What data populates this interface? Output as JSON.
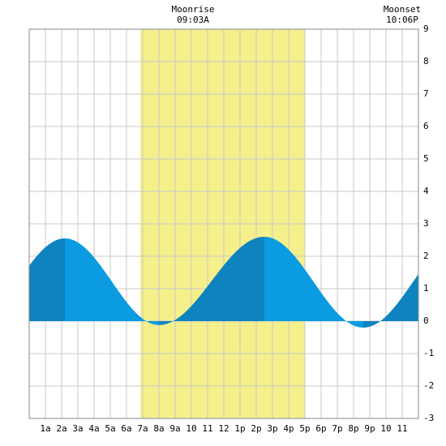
{
  "header": {
    "moonrise_label": "Moonrise",
    "moonrise_time": "09:03A",
    "moonset_label": "Moonset",
    "moonset_time": "10:06P"
  },
  "chart_data": {
    "type": "area",
    "title": "",
    "xlabel": "",
    "ylabel": "",
    "xlim": [
      0,
      24
    ],
    "ylim": [
      -3,
      9
    ],
    "y_ticks": [
      "-3",
      "-2",
      "-1",
      "0",
      "1",
      "2",
      "3",
      "4",
      "5",
      "6",
      "7",
      "8",
      "9"
    ],
    "x_ticks": [
      {
        "hour": 1,
        "label": "1a"
      },
      {
        "hour": 2,
        "label": "2a"
      },
      {
        "hour": 3,
        "label": "3a"
      },
      {
        "hour": 4,
        "label": "4a"
      },
      {
        "hour": 5,
        "label": "5a"
      },
      {
        "hour": 6,
        "label": "6a"
      },
      {
        "hour": 7,
        "label": "7a"
      },
      {
        "hour": 8,
        "label": "8a"
      },
      {
        "hour": 9,
        "label": "9a"
      },
      {
        "hour": 10,
        "label": "10"
      },
      {
        "hour": 11,
        "label": "11"
      },
      {
        "hour": 12,
        "label": "12"
      },
      {
        "hour": 13,
        "label": "1p"
      },
      {
        "hour": 14,
        "label": "2p"
      },
      {
        "hour": 15,
        "label": "3p"
      },
      {
        "hour": 16,
        "label": "4p"
      },
      {
        "hour": 17,
        "label": "5p"
      },
      {
        "hour": 18,
        "label": "6p"
      },
      {
        "hour": 19,
        "label": "7p"
      },
      {
        "hour": 20,
        "label": "8p"
      },
      {
        "hour": 21,
        "label": "9p"
      },
      {
        "hour": 22,
        "label": "10"
      },
      {
        "hour": 23,
        "label": "11"
      }
    ],
    "grid": true,
    "daylight": {
      "start": 6.85,
      "end": 17.0
    },
    "tide_extremes": [
      {
        "hour": 2.2,
        "height": 2.55,
        "kind": "high"
      },
      {
        "hour": 8.0,
        "height": -0.12,
        "kind": "low"
      },
      {
        "hour": 14.5,
        "height": 2.6,
        "kind": "high"
      },
      {
        "hour": 20.6,
        "height": -0.2,
        "kind": "low"
      }
    ],
    "start_height": 1.85,
    "end_height": 1.4,
    "colors": {
      "daylight": "#f5ef8c",
      "rising": "#0e83bf",
      "falling": "#0a9be0",
      "grid": "#c8c8c8",
      "border": "#888888"
    }
  }
}
